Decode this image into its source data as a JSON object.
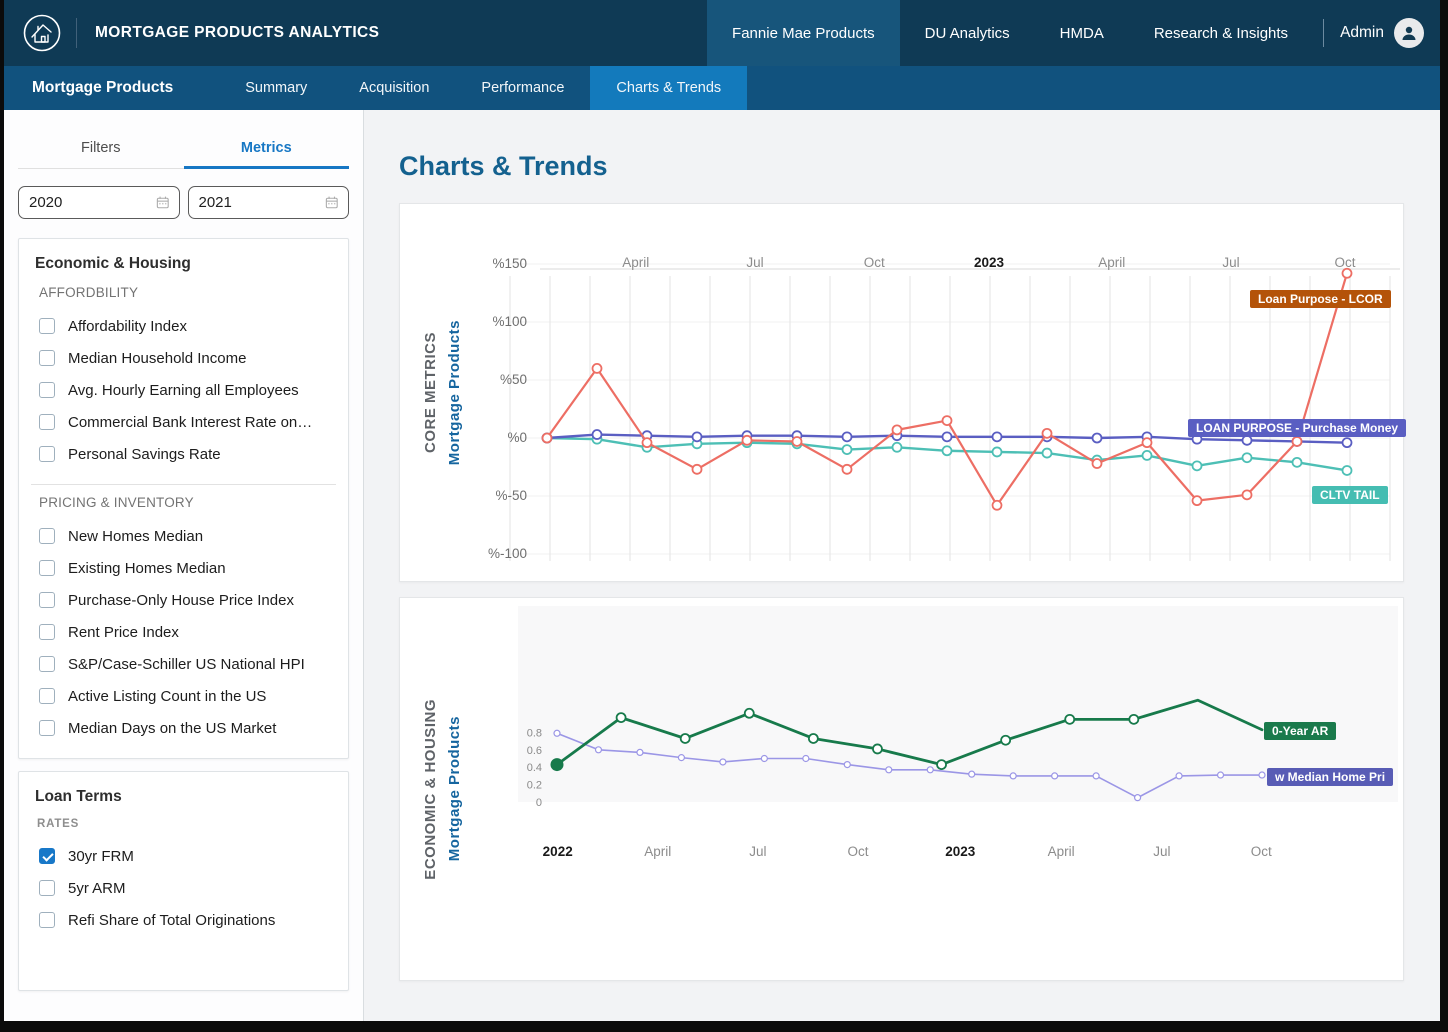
{
  "colors": {
    "topnav_bg": "#0f3a55",
    "topnav_active_bg": "#17557b",
    "subnav_bg": "#11527e",
    "subnav_active_bg": "#137abc",
    "accent_blue": "#1777c4",
    "heading_blue": "#14618f",
    "checkbox_checked": "#1878c8"
  },
  "header": {
    "title": "MORTGAGE PRODUCTS ANALYTICS",
    "nav": [
      {
        "label": "Fannie Mae Products",
        "active": true
      },
      {
        "label": "DU Analytics",
        "active": false
      },
      {
        "label": "HMDA",
        "active": false
      },
      {
        "label": "Research & Insights",
        "active": false
      }
    ],
    "admin_label": "Admin"
  },
  "subnav": {
    "brand": "Mortgage Products",
    "tabs": [
      {
        "label": "Summary",
        "active": false
      },
      {
        "label": "Acquisition",
        "active": false
      },
      {
        "label": "Performance",
        "active": false
      },
      {
        "label": "Charts & Trends",
        "active": true
      }
    ]
  },
  "sidebar": {
    "tabs": [
      {
        "label": "Filters",
        "active": false
      },
      {
        "label": "Metrics",
        "active": true
      }
    ],
    "date_from": "2020",
    "date_to": "2021",
    "sections": [
      {
        "title": "Economic & Housing",
        "groups": [
          {
            "heading": "AFFORDBILITY",
            "heading_style": "normal",
            "items": [
              {
                "label": "Affordability Index",
                "checked": false
              },
              {
                "label": "Median Household Income",
                "checked": false
              },
              {
                "label": "Avg. Hourly Earning all Employees",
                "checked": false
              },
              {
                "label": "Commercial Bank Interest Rate on…",
                "checked": false
              },
              {
                "label": "Personal Savings Rate",
                "checked": false
              }
            ]
          },
          {
            "heading": "PRICING & INVENTORY",
            "heading_style": "normal",
            "items": [
              {
                "label": "New Homes Median",
                "checked": false
              },
              {
                "label": "Existing Homes Median",
                "checked": false
              },
              {
                "label": "Purchase-Only House Price Index",
                "checked": false
              },
              {
                "label": "Rent Price Index",
                "checked": false
              },
              {
                "label": "S&P/Case-Schiller US National HPI",
                "checked": false
              },
              {
                "label": "Active Listing Count in the US",
                "checked": false
              },
              {
                "label": "Median Days on the US Market",
                "checked": false
              }
            ]
          }
        ]
      },
      {
        "title": "Loan Terms",
        "groups": [
          {
            "heading": "RATES",
            "heading_style": "small",
            "items": [
              {
                "label": "30yr FRM",
                "checked": true
              },
              {
                "label": "5yr ARM",
                "checked": false
              },
              {
                "label": "Refi Share of Total Originations",
                "checked": false
              }
            ]
          }
        ]
      }
    ]
  },
  "main": {
    "title": "Charts & Trends"
  },
  "chart_data": [
    {
      "type": "line",
      "side_label": "CORE METRICS",
      "side_sublabel": "Mortgage Products",
      "ylim": [
        -100,
        150
      ],
      "grid": true,
      "legend_position": "right-overlay-badges",
      "y_ticks": [
        {
          "label": "%150",
          "v": 150
        },
        {
          "label": "%100",
          "v": 100
        },
        {
          "label": "%50",
          "v": 50
        },
        {
          "label": "%0",
          "v": 0
        },
        {
          "label": "%-50",
          "v": -50
        },
        {
          "label": "%-100",
          "v": -100
        }
      ],
      "x_ticks": [
        {
          "label": "April",
          "f": 0.111,
          "bold": false
        },
        {
          "label": "Jul",
          "f": 0.26,
          "bold": false
        },
        {
          "label": "Oct",
          "f": 0.409,
          "bold": false
        },
        {
          "label": "2023",
          "f": 0.5525,
          "bold": true
        },
        {
          "label": "April",
          "f": 0.706,
          "bold": false
        },
        {
          "label": "Jul",
          "f": 0.855,
          "bold": false
        },
        {
          "label": "Oct",
          "f": 0.9975,
          "bold": false
        }
      ],
      "series": [
        {
          "name": "Loan Purpose - LCOR",
          "color": "#ed6e64",
          "badge_bg": "#b45309",
          "values": [
            0,
            60,
            -4,
            -27,
            -2,
            -3,
            -27,
            7,
            15,
            -58,
            4,
            -22,
            -4,
            -54,
            -49,
            -3,
            142
          ]
        },
        {
          "name": "LOAN PURPOSE - Purchase Money",
          "color": "#5a5ec2",
          "badge_bg": "#5a5ec2",
          "values": [
            0,
            3,
            2,
            1,
            2,
            2,
            1,
            2,
            1,
            1,
            1,
            0,
            1,
            -1,
            -2,
            -3,
            -4
          ]
        },
        {
          "name": "CLTV TAIL",
          "color": "#4dbfb5",
          "badge_bg": "#45bdb2",
          "values": [
            0,
            -1,
            -8,
            -5,
            -4,
            -5,
            -10,
            -8,
            -11,
            -12,
            -13,
            -19,
            -15,
            -24,
            -17,
            -21,
            -28
          ]
        }
      ]
    },
    {
      "type": "line",
      "side_label": "ECONOMIC & HOUSING",
      "side_sublabel": "Mortgage Products",
      "ylim": [
        0,
        1.2
      ],
      "grid": false,
      "legend_position": "right-overlay-badges",
      "y_ticks": [
        {
          "label": "0.8",
          "v": 0.8
        },
        {
          "label": "0.6",
          "v": 0.6
        },
        {
          "label": "0.4",
          "v": 0.4
        },
        {
          "label": "0.2",
          "v": 0.2
        },
        {
          "label": "0",
          "v": 0
        }
      ],
      "x_ticks": [
        {
          "label": "2022",
          "f": 0.001,
          "bold": true
        },
        {
          "label": "April",
          "f": 0.143,
          "bold": false
        },
        {
          "label": "Jul",
          "f": 0.285,
          "bold": false
        },
        {
          "label": "Oct",
          "f": 0.427,
          "bold": false
        },
        {
          "label": "2023",
          "f": 0.572,
          "bold": true
        },
        {
          "label": "April",
          "f": 0.715,
          "bold": false
        },
        {
          "label": "Jul",
          "f": 0.858,
          "bold": false
        },
        {
          "label": "Oct",
          "f": 0.999,
          "bold": false
        }
      ],
      "series": [
        {
          "name": "0-Year AR",
          "color": "#177a4b",
          "badge_bg": "#1a7a4c",
          "first_solid": true,
          "marker_skip": [
            10,
            11
          ],
          "values": [
            0.43,
            0.97,
            0.73,
            1.02,
            0.73,
            0.61,
            0.43,
            0.71,
            0.95,
            0.95,
            1.17,
            0.83
          ]
        },
        {
          "name": "w Median Home Pri",
          "color": "#9b96e6",
          "badge_bg": "#585cb5",
          "values": [
            0.79,
            0.6,
            0.57,
            0.51,
            0.46,
            0.5,
            0.5,
            0.43,
            0.37,
            0.37,
            0.32,
            0.3,
            0.3,
            0.3,
            0.05,
            0.3,
            0.31,
            0.31
          ]
        }
      ]
    }
  ]
}
